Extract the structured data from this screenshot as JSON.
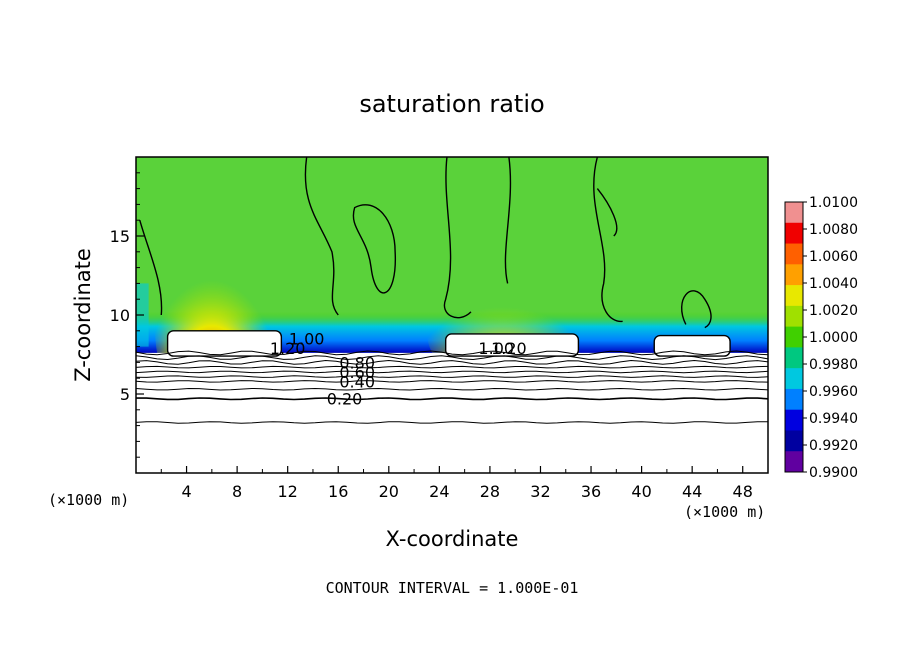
{
  "chart_data": {
    "type": "heatmap",
    "title": "saturation ratio",
    "xlabel": "X-coordinate",
    "ylabel": "Z-coordinate",
    "x_unit": "(×1000 m)",
    "z_unit": "(×1000 m)",
    "xlim": [
      0,
      50
    ],
    "ylim": [
      0,
      20
    ],
    "x_ticks": [
      4,
      8,
      12,
      16,
      20,
      24,
      28,
      32,
      36,
      40,
      44,
      48
    ],
    "y_ticks": [
      5,
      10,
      15
    ],
    "footer": "CONTOUR INTERVAL = 1.000E-01",
    "colorbar": {
      "values": [
        "1.0100",
        "1.0080",
        "1.0060",
        "1.0040",
        "1.0020",
        "1.0000",
        "0.9980",
        "0.9960",
        "0.9940",
        "0.9920",
        "0.9900"
      ],
      "colors": [
        "#f09090",
        "#f00000",
        "#ff6000",
        "#ffa000",
        "#e8e800",
        "#a0e000",
        "#40d000",
        "#00c880",
        "#00c8e0",
        "#0080ff",
        "#0000e0",
        "#0000a0",
        "#6000a0"
      ]
    },
    "contour_lines": [
      {
        "label": "0.20",
        "z": 4.7,
        "label_x": 16.5
      },
      {
        "label": "0.40",
        "z": 5.8,
        "label_x": 17.5
      },
      {
        "label": "0.60",
        "z": 6.4,
        "label_x": 17.5
      },
      {
        "label": "0.80",
        "z": 7.0,
        "label_x": 17.5
      },
      {
        "label": "1.20",
        "z": 7.9,
        "label_x": 12.0
      },
      {
        "label": "1.00",
        "z": 8.5,
        "label_x": 13.5
      },
      {
        "label": "1.20",
        "z": 7.9,
        "label_x": 29.5
      },
      {
        "label": "1.00",
        "z": 7.9,
        "label_x": 28.5
      }
    ],
    "plateaus": [
      {
        "x0": 2.5,
        "x1": 11.5,
        "z_top": 9.0
      },
      {
        "x0": 24.5,
        "x1": 35.0,
        "z_top": 8.8
      },
      {
        "x0": 41.0,
        "x1": 47.0,
        "z_top": 8.7
      }
    ]
  }
}
